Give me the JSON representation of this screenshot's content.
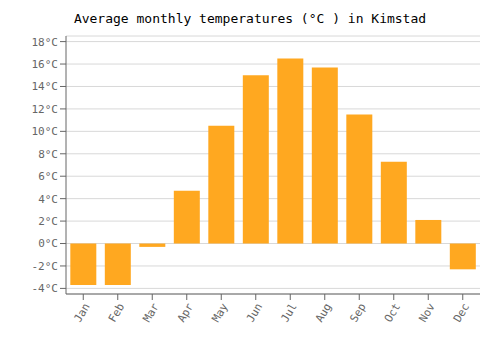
{
  "chart_data": {
    "type": "bar",
    "title": "Average monthly temperatures (°C ) in Kimstad",
    "categories": [
      "Jan",
      "Feb",
      "Mar",
      "Apr",
      "May",
      "Jun",
      "Jul",
      "Aug",
      "Sep",
      "Oct",
      "Nov",
      "Dec"
    ],
    "values": [
      -3.7,
      -3.7,
      -0.3,
      4.7,
      10.5,
      15.0,
      16.5,
      15.7,
      11.5,
      7.3,
      2.1,
      -2.3
    ],
    "color": "#FFA820",
    "ylim": [
      -4.5,
      18.5
    ],
    "yticks": [
      {
        "value": -4,
        "label": "-4°C"
      },
      {
        "value": -2,
        "label": "-2°C"
      },
      {
        "value": 0,
        "label": "0°C"
      },
      {
        "value": 2,
        "label": "2°C"
      },
      {
        "value": 4,
        "label": "4°C"
      },
      {
        "value": 6,
        "label": "6°C"
      },
      {
        "value": 8,
        "label": "8°C"
      },
      {
        "value": 10,
        "label": "10°C"
      },
      {
        "value": 12,
        "label": "12°C"
      },
      {
        "value": 14,
        "label": "14°C"
      },
      {
        "value": 16,
        "label": "16°C"
      },
      {
        "value": 18,
        "label": "18°C"
      }
    ],
    "grid": true
  }
}
